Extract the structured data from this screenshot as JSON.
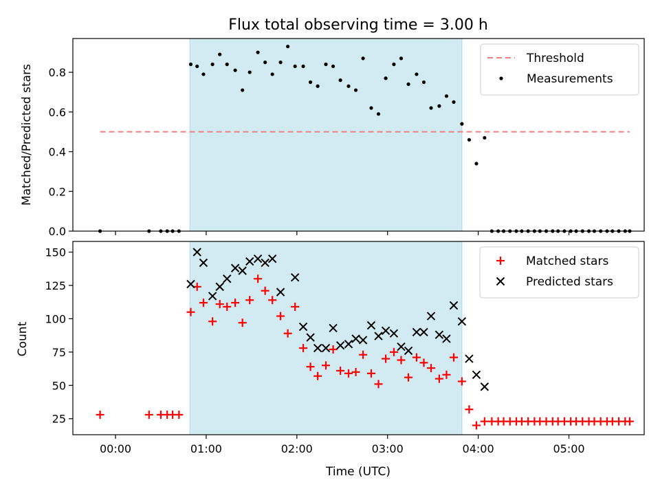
{
  "chart_data": [
    {
      "type": "scatter",
      "title": "Flux total observing time = 3.00 h",
      "xlabel": "",
      "ylabel": "Matched/Predicted stars",
      "ylim": [
        0,
        0.97
      ],
      "yticks": [
        0.0,
        0.2,
        0.4,
        0.6,
        0.8
      ],
      "ytick_labels": [
        "0.0",
        "0.2",
        "0.4",
        "0.6",
        "0.8"
      ],
      "xlim": [
        -0.47,
        5.83
      ],
      "shaded_span": [
        0.82,
        3.82
      ],
      "shade_color": "#add8e6",
      "threshold": {
        "name": "Threshold",
        "value": 0.5,
        "x_range": [
          -0.17,
          5.67
        ],
        "color": "#f08080",
        "style": "dashed"
      },
      "legend": {
        "placement": "upper right",
        "entries": [
          "Threshold",
          "Measurements"
        ]
      },
      "series": [
        {
          "name": "Measurements",
          "marker": "dot",
          "color": "#000000",
          "x": [
            -0.17,
            0.37,
            0.5,
            0.57,
            0.63,
            0.7,
            0.83,
            0.9,
            0.97,
            1.07,
            1.15,
            1.23,
            1.32,
            1.4,
            1.48,
            1.57,
            1.65,
            1.73,
            1.82,
            1.9,
            1.98,
            2.07,
            2.15,
            2.23,
            2.32,
            2.4,
            2.48,
            2.57,
            2.65,
            2.73,
            2.82,
            2.9,
            2.98,
            3.07,
            3.15,
            3.23,
            3.32,
            3.4,
            3.48,
            3.57,
            3.65,
            3.73,
            3.82,
            3.9,
            3.98,
            4.07,
            4.15,
            4.22,
            4.28,
            4.35,
            4.42,
            4.48,
            4.55,
            4.62,
            4.68,
            4.75,
            4.82,
            4.88,
            4.95,
            5.02,
            5.08,
            5.15,
            5.22,
            5.28,
            5.35,
            5.42,
            5.48,
            5.55,
            5.62,
            5.67
          ],
          "y": [
            0,
            0,
            0,
            0,
            0,
            0,
            0.84,
            0.83,
            0.79,
            0.84,
            0.89,
            0.84,
            0.81,
            0.71,
            0.8,
            0.9,
            0.85,
            0.79,
            0.85,
            0.93,
            0.83,
            0.83,
            0.75,
            0.73,
            0.84,
            0.83,
            0.76,
            0.73,
            0.71,
            0.87,
            0.62,
            0.59,
            0.77,
            0.84,
            0.87,
            0.74,
            0.79,
            0.75,
            0.62,
            0.63,
            0.68,
            0.65,
            0.54,
            0.46,
            0.34,
            0.47,
            0,
            0,
            0,
            0,
            0,
            0,
            0,
            0,
            0,
            0,
            0,
            0,
            0,
            0,
            0,
            0,
            0,
            0,
            0,
            0,
            0,
            0,
            0,
            0
          ]
        }
      ]
    },
    {
      "type": "scatter",
      "title": "",
      "xlabel": "Time (UTC)",
      "ylabel": "Count",
      "ylim": [
        13,
        158
      ],
      "yticks": [
        25,
        50,
        75,
        100,
        125,
        150
      ],
      "ytick_labels": [
        "25",
        "50",
        "75",
        "100",
        "125",
        "150"
      ],
      "xlim": [
        -0.47,
        5.83
      ],
      "xticks": [
        0,
        1,
        2,
        3,
        4,
        5
      ],
      "xtick_labels": [
        "00:00",
        "01:00",
        "02:00",
        "03:00",
        "04:00",
        "05:00"
      ],
      "shaded_span": [
        0.82,
        3.82
      ],
      "shade_color": "#add8e6",
      "legend": {
        "placement": "upper right",
        "entries": [
          "Matched stars",
          "Predicted stars"
        ]
      },
      "series": [
        {
          "name": "Matched stars",
          "marker": "plus",
          "color": "#ff0000",
          "x": [
            -0.17,
            0.37,
            0.5,
            0.57,
            0.63,
            0.7,
            0.83,
            0.9,
            0.97,
            1.07,
            1.15,
            1.23,
            1.32,
            1.4,
            1.48,
            1.57,
            1.65,
            1.73,
            1.82,
            1.9,
            1.98,
            2.07,
            2.15,
            2.23,
            2.32,
            2.4,
            2.48,
            2.57,
            2.65,
            2.73,
            2.82,
            2.9,
            2.98,
            3.07,
            3.15,
            3.23,
            3.32,
            3.4,
            3.48,
            3.57,
            3.65,
            3.73,
            3.82,
            3.9,
            3.98,
            4.07,
            4.15,
            4.22,
            4.28,
            4.35,
            4.42,
            4.48,
            4.55,
            4.62,
            4.68,
            4.75,
            4.82,
            4.88,
            4.95,
            5.02,
            5.08,
            5.15,
            5.22,
            5.28,
            5.35,
            5.42,
            5.48,
            5.55,
            5.62,
            5.67
          ],
          "y": [
            28,
            28,
            28,
            28,
            28,
            28,
            105,
            124,
            112,
            98,
            111,
            109,
            112,
            97,
            114,
            130,
            121,
            114,
            102,
            89,
            109,
            78,
            64,
            57,
            65,
            77,
            61,
            59,
            60,
            73,
            59,
            51,
            70,
            75,
            69,
            56,
            71,
            67,
            63,
            55,
            58,
            71,
            53,
            32,
            20,
            23,
            23,
            23,
            23,
            23,
            23,
            23,
            23,
            23,
            23,
            23,
            23,
            23,
            23,
            23,
            23,
            23,
            23,
            23,
            23,
            23,
            23,
            23,
            23,
            23
          ]
        },
        {
          "name": "Predicted stars",
          "marker": "x",
          "color": "#000000",
          "x": [
            0.83,
            0.9,
            0.97,
            1.07,
            1.15,
            1.23,
            1.32,
            1.4,
            1.48,
            1.57,
            1.65,
            1.73,
            1.82,
            1.98,
            2.07,
            2.15,
            2.23,
            2.32,
            2.4,
            2.48,
            2.57,
            2.65,
            2.73,
            2.82,
            2.9,
            2.98,
            3.07,
            3.15,
            3.23,
            3.32,
            3.4,
            3.48,
            3.57,
            3.65,
            3.73,
            3.82,
            3.9,
            3.98,
            4.07
          ],
          "y": [
            126,
            150,
            142,
            117,
            124,
            130,
            138,
            136,
            143,
            145,
            142,
            145,
            120,
            131,
            94,
            86,
            78,
            78,
            93,
            80,
            81,
            85,
            84,
            95,
            87,
            91,
            89,
            79,
            76,
            90,
            90,
            102,
            88,
            85,
            110,
            98,
            70,
            58,
            49
          ]
        }
      ]
    }
  ]
}
